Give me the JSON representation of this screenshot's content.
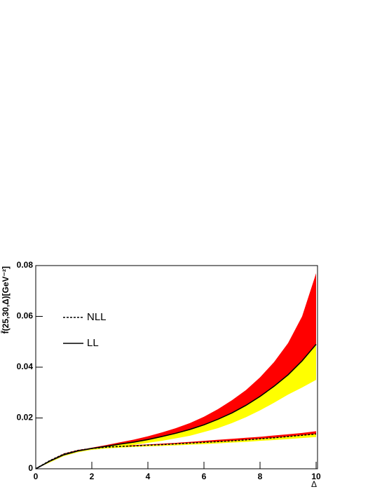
{
  "chart_data": {
    "type": "line",
    "ylabel": "f̄(25,30,Δ)[GeV⁻²]",
    "xlabel": "Δ",
    "x": [
      0,
      0.5,
      1,
      1.5,
      2,
      2.5,
      3,
      3.5,
      4,
      4.5,
      5,
      5.5,
      6,
      6.5,
      7,
      7.5,
      8,
      8.5,
      9,
      9.5,
      10
    ],
    "xlim": [
      0,
      10
    ],
    "xticks": [
      0,
      2,
      4,
      6,
      8,
      10
    ],
    "ylim": [
      0,
      0.08
    ],
    "yticks": [
      0,
      0.02,
      0.04,
      0.06,
      0.08
    ],
    "band_upper_color": "#ff0000",
    "band_lower_color": "#ffff00",
    "series": [
      {
        "name": "NLL",
        "color": "#000000",
        "dashed": true,
        "values": [
          0,
          0.0032,
          0.0058,
          0.0072,
          0.008,
          0.0085,
          0.0088,
          0.009,
          0.0093,
          0.0095,
          0.0098,
          0.0101,
          0.0104,
          0.0107,
          0.011,
          0.0114,
          0.0118,
          0.0122,
          0.0127,
          0.0132,
          0.0137
        ],
        "band_upper": [
          0,
          0.0033,
          0.006,
          0.0074,
          0.0082,
          0.0087,
          0.009,
          0.0093,
          0.0096,
          0.0099,
          0.0102,
          0.0106,
          0.011,
          0.0114,
          0.0118,
          0.0122,
          0.0126,
          0.0131,
          0.0136,
          0.0141,
          0.0148
        ],
        "band_lower": [
          0,
          0.0028,
          0.0053,
          0.0067,
          0.0075,
          0.008,
          0.0083,
          0.0086,
          0.0088,
          0.009,
          0.0092,
          0.0095,
          0.0097,
          0.01,
          0.0103,
          0.0106,
          0.011,
          0.0113,
          0.0117,
          0.0121,
          0.0125
        ]
      },
      {
        "name": "LL",
        "color": "#000000",
        "dashed": false,
        "values": [
          0,
          0.003,
          0.0055,
          0.007,
          0.008,
          0.0088,
          0.0097,
          0.0105,
          0.0115,
          0.0127,
          0.014,
          0.0155,
          0.0173,
          0.0195,
          0.022,
          0.025,
          0.0285,
          0.0325,
          0.037,
          0.0425,
          0.049
        ],
        "band_upper": [
          0,
          0.003,
          0.0057,
          0.0073,
          0.0083,
          0.0093,
          0.0104,
          0.0115,
          0.0128,
          0.0143,
          0.016,
          0.018,
          0.0205,
          0.0235,
          0.027,
          0.031,
          0.036,
          0.042,
          0.0495,
          0.06,
          0.077
        ],
        "band_lower": [
          0,
          0.0025,
          0.005,
          0.0065,
          0.0075,
          0.008,
          0.0087,
          0.0094,
          0.0102,
          0.011,
          0.012,
          0.013,
          0.0145,
          0.016,
          0.018,
          0.0203,
          0.023,
          0.026,
          0.0292,
          0.032,
          0.035
        ]
      }
    ]
  }
}
